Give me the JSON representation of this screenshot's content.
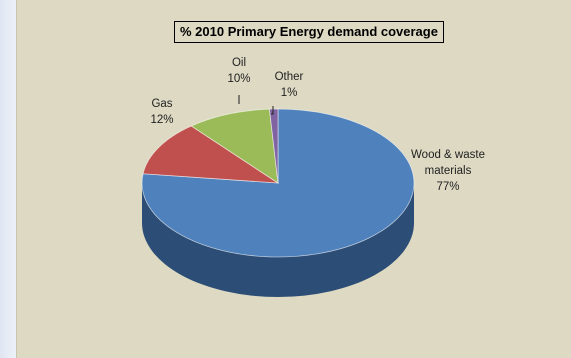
{
  "chart_data": {
    "type": "pie",
    "title": "% 2010 Primary Energy demand coverage",
    "three_d": true,
    "legend": "none",
    "slices": [
      {
        "label": "Wood & waste materials",
        "label_lines": [
          "Wood & waste",
          "materials"
        ],
        "value": 77,
        "value_label": "77%",
        "color": "#4f81bd",
        "side": "#2c4d75"
      },
      {
        "label": "Gas",
        "label_lines": [
          "Gas"
        ],
        "value": 12,
        "value_label": "12%",
        "color": "#c0504d",
        "side": "#7a2f2d"
      },
      {
        "label": "Oil",
        "label_lines": [
          "Oil"
        ],
        "value": 10,
        "value_label": "10%",
        "color": "#9bbb59",
        "side": "#5f7635"
      },
      {
        "label": "Other",
        "label_lines": [
          "Other"
        ],
        "value": 1,
        "value_label": "1%",
        "color": "#8064a2",
        "side": "#4e3c63"
      }
    ]
  }
}
